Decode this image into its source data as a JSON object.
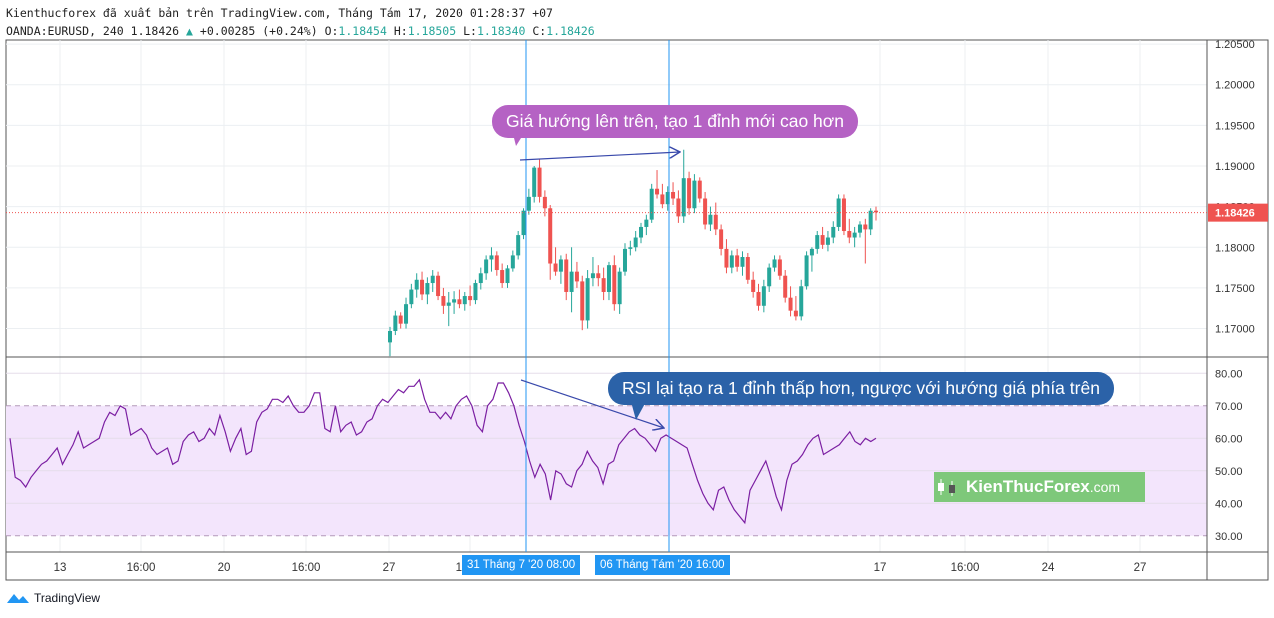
{
  "header": {
    "line1": "Kienthucforex đã xuất bản trên TradingView.com, Tháng Tám 17, 2020 01:28:37 +07",
    "symbol": "OANDA:EURUSD, 240",
    "last": "1.18426",
    "change": "+0.00285 (+0.24%)",
    "o_label": "O:",
    "o_val": "1.18454",
    "h_label": "H:",
    "h_val": "1.18505",
    "l_label": "L:",
    "l_val": "1.18340",
    "c_label": "C:",
    "c_val": "1.18426"
  },
  "annotations": {
    "price_note": "Giá hướng lên trên, tạo 1 đỉnh mới cao hơn",
    "rsi_note": "RSI lại tạo ra 1 đỉnh thấp hơn, ngược với hướng  giá phía trên"
  },
  "watermark": {
    "name": "KienThucForex",
    "domain": ".com"
  },
  "footer": {
    "brand": "TradingView"
  },
  "x_highlight_labels": [
    "31 Tháng 7 '20   08:00",
    "06 Tháng Tám '20   16:00"
  ],
  "colors": {
    "up": "#26a69a",
    "down": "#ef5350",
    "rsi": "#7b1fa2",
    "rsi_band": "#f3e5fc",
    "crosshair": "#2196f3",
    "price_label": "#ef5350"
  },
  "chart_data": [
    {
      "type": "candlestick",
      "symbol": "OANDA:EURUSD",
      "timeframe": "240",
      "y_ticks": [
        "1.20500",
        "1.20000",
        "1.19500",
        "1.19000",
        "1.18500",
        "1.18000",
        "1.17500",
        "1.17000"
      ],
      "ylim": [
        1.1665,
        1.2055
      ],
      "current_price": "1.18426",
      "x_ticks": [
        "13",
        "16:00",
        "20",
        "16:00",
        "27",
        "16:00",
        "17",
        "16:00",
        "24",
        "27"
      ],
      "candles": [
        [
          1.1683,
          1.1702,
          1.1666,
          1.1697
        ],
        [
          1.1697,
          1.1722,
          1.1692,
          1.1716
        ],
        [
          1.1716,
          1.172,
          1.17,
          1.1706
        ],
        [
          1.1706,
          1.1738,
          1.17,
          1.173
        ],
        [
          1.173,
          1.1755,
          1.1725,
          1.1748
        ],
        [
          1.1748,
          1.1768,
          1.1738,
          1.176
        ],
        [
          1.176,
          1.177,
          1.1735,
          1.1742
        ],
        [
          1.1742,
          1.1763,
          1.173,
          1.1756
        ],
        [
          1.1756,
          1.1772,
          1.1745,
          1.1765
        ],
        [
          1.1765,
          1.177,
          1.1735,
          1.174
        ],
        [
          1.174,
          1.175,
          1.1718,
          1.1728
        ],
        [
          1.1728,
          1.1745,
          1.1703,
          1.1732
        ],
        [
          1.1732,
          1.1746,
          1.1718,
          1.1736
        ],
        [
          1.1736,
          1.1748,
          1.1725,
          1.173
        ],
        [
          1.173,
          1.1745,
          1.1722,
          1.174
        ],
        [
          1.174,
          1.1753,
          1.1728,
          1.1735
        ],
        [
          1.1735,
          1.176,
          1.173,
          1.1756
        ],
        [
          1.1756,
          1.1775,
          1.1748,
          1.1768
        ],
        [
          1.1768,
          1.179,
          1.176,
          1.1785
        ],
        [
          1.1785,
          1.18,
          1.177,
          1.179
        ],
        [
          1.179,
          1.1795,
          1.1765,
          1.1772
        ],
        [
          1.1772,
          1.178,
          1.175,
          1.1756
        ],
        [
          1.1756,
          1.1778,
          1.175,
          1.1774
        ],
        [
          1.1774,
          1.1796,
          1.177,
          1.179
        ],
        [
          1.179,
          1.182,
          1.1785,
          1.1815
        ],
        [
          1.1815,
          1.1848,
          1.181,
          1.1845
        ],
        [
          1.1845,
          1.1872,
          1.184,
          1.1862
        ],
        [
          1.1862,
          1.19,
          1.1855,
          1.1898
        ],
        [
          1.1898,
          1.1908,
          1.1855,
          1.1862
        ],
        [
          1.1862,
          1.187,
          1.1838,
          1.1848
        ],
        [
          1.1848,
          1.1852,
          1.176,
          1.178
        ],
        [
          1.178,
          1.18,
          1.1765,
          1.177
        ],
        [
          1.177,
          1.179,
          1.1755,
          1.1785
        ],
        [
          1.1785,
          1.1792,
          1.1735,
          1.1745
        ],
        [
          1.1745,
          1.18,
          1.172,
          1.177
        ],
        [
          1.177,
          1.1782,
          1.175,
          1.1758
        ],
        [
          1.1758,
          1.1765,
          1.1698,
          1.171
        ],
        [
          1.171,
          1.1772,
          1.17,
          1.1762
        ],
        [
          1.1762,
          1.1788,
          1.1752,
          1.1768
        ],
        [
          1.1768,
          1.1778,
          1.1752,
          1.1762
        ],
        [
          1.1762,
          1.1775,
          1.1735,
          1.1745
        ],
        [
          1.1745,
          1.1782,
          1.1735,
          1.1778
        ],
        [
          1.1778,
          1.179,
          1.1722,
          1.173
        ],
        [
          1.173,
          1.1775,
          1.1718,
          1.177
        ],
        [
          1.177,
          1.1805,
          1.1765,
          1.1798
        ],
        [
          1.1798,
          1.1808,
          1.179,
          1.18
        ],
        [
          1.18,
          1.182,
          1.1795,
          1.1812
        ],
        [
          1.1812,
          1.183,
          1.1805,
          1.1825
        ],
        [
          1.1825,
          1.184,
          1.1815,
          1.1834
        ],
        [
          1.1834,
          1.1878,
          1.183,
          1.1872
        ],
        [
          1.1872,
          1.1895,
          1.186,
          1.1865
        ],
        [
          1.1865,
          1.1878,
          1.1848,
          1.1853
        ],
        [
          1.1853,
          1.1875,
          1.1845,
          1.1868
        ],
        [
          1.1868,
          1.188,
          1.1852,
          1.186
        ],
        [
          1.186,
          1.187,
          1.183,
          1.1838
        ],
        [
          1.1838,
          1.192,
          1.183,
          1.1885
        ],
        [
          1.1885,
          1.1893,
          1.184,
          1.1848
        ],
        [
          1.1848,
          1.189,
          1.1842,
          1.1882
        ],
        [
          1.1882,
          1.1886,
          1.1855,
          1.186
        ],
        [
          1.186,
          1.1868,
          1.1822,
          1.1828
        ],
        [
          1.1828,
          1.185,
          1.182,
          1.184
        ],
        [
          1.184,
          1.1855,
          1.1815,
          1.1822
        ],
        [
          1.1822,
          1.1828,
          1.179,
          1.1798
        ],
        [
          1.1798,
          1.181,
          1.1768,
          1.1775
        ],
        [
          1.1775,
          1.1796,
          1.1768,
          1.179
        ],
        [
          1.179,
          1.1798,
          1.177,
          1.1776
        ],
        [
          1.1776,
          1.1795,
          1.1765,
          1.1788
        ],
        [
          1.1788,
          1.1793,
          1.1755,
          1.176
        ],
        [
          1.176,
          1.177,
          1.1738,
          1.1745
        ],
        [
          1.1745,
          1.1755,
          1.1722,
          1.1728
        ],
        [
          1.1728,
          1.176,
          1.172,
          1.1752
        ],
        [
          1.1752,
          1.178,
          1.1745,
          1.1775
        ],
        [
          1.1775,
          1.179,
          1.177,
          1.1785
        ],
        [
          1.1785,
          1.179,
          1.176,
          1.1765
        ],
        [
          1.1765,
          1.1772,
          1.1732,
          1.1738
        ],
        [
          1.1738,
          1.1752,
          1.1715,
          1.1722
        ],
        [
          1.1722,
          1.174,
          1.171,
          1.1715
        ],
        [
          1.1715,
          1.176,
          1.171,
          1.1752
        ],
        [
          1.1752,
          1.1795,
          1.1748,
          1.179
        ],
        [
          1.179,
          1.18,
          1.177,
          1.1798
        ],
        [
          1.1798,
          1.182,
          1.1792,
          1.1815
        ],
        [
          1.1815,
          1.1825,
          1.1798,
          1.1803
        ],
        [
          1.1803,
          1.182,
          1.1795,
          1.1812
        ],
        [
          1.1812,
          1.1832,
          1.1805,
          1.1825
        ],
        [
          1.1825,
          1.1865,
          1.182,
          1.186
        ],
        [
          1.186,
          1.1865,
          1.1815,
          1.182
        ],
        [
          1.182,
          1.1835,
          1.1805,
          1.1812
        ],
        [
          1.1812,
          1.1825,
          1.18,
          1.1818
        ],
        [
          1.1818,
          1.1832,
          1.1812,
          1.1828
        ],
        [
          1.1828,
          1.1835,
          1.178,
          1.1822
        ],
        [
          1.1822,
          1.1848,
          1.1815,
          1.1845
        ],
        [
          1.1845,
          1.185,
          1.1833,
          1.1843
        ]
      ]
    },
    {
      "type": "line",
      "name": "RSI",
      "ylim": [
        25,
        85
      ],
      "y_ticks": [
        "80.00",
        "70.00",
        "60.00",
        "50.00",
        "40.00",
        "30.00"
      ],
      "band": [
        30,
        70
      ],
      "values": [
        60,
        48,
        47,
        45,
        48,
        50,
        52,
        53,
        55,
        57,
        52,
        55,
        58,
        62,
        57,
        58,
        59,
        60,
        65,
        68,
        67,
        70,
        69,
        61,
        62,
        63,
        61,
        57,
        55,
        56,
        57,
        52,
        53,
        59,
        61,
        62,
        59,
        60,
        63,
        61,
        67,
        62,
        56,
        60,
        63,
        55,
        56,
        65,
        68,
        69,
        72,
        72,
        71,
        73,
        70,
        68,
        68,
        70,
        74,
        74,
        63,
        62,
        70,
        62,
        64,
        65,
        61,
        62,
        65,
        66,
        70,
        72,
        71,
        73,
        75,
        74,
        76,
        76,
        78,
        72,
        68,
        68,
        66,
        68,
        66,
        70,
        72,
        73,
        70,
        64,
        62,
        70,
        72,
        77,
        77,
        74,
        70,
        64,
        59,
        53,
        48,
        52,
        49,
        41,
        50,
        49,
        46,
        45,
        50,
        52,
        56,
        53,
        51,
        46,
        52,
        53,
        58,
        60,
        62,
        63,
        61,
        60,
        58,
        56,
        60,
        61,
        60,
        59,
        58,
        57,
        52,
        47,
        43,
        40,
        38,
        44,
        45,
        41,
        38,
        36,
        34,
        44,
        47,
        50,
        53,
        48,
        42,
        38,
        47,
        52,
        53,
        55,
        58,
        60,
        61,
        55,
        56,
        57,
        58,
        60,
        62,
        59,
        58,
        60,
        59,
        60
      ]
    }
  ]
}
